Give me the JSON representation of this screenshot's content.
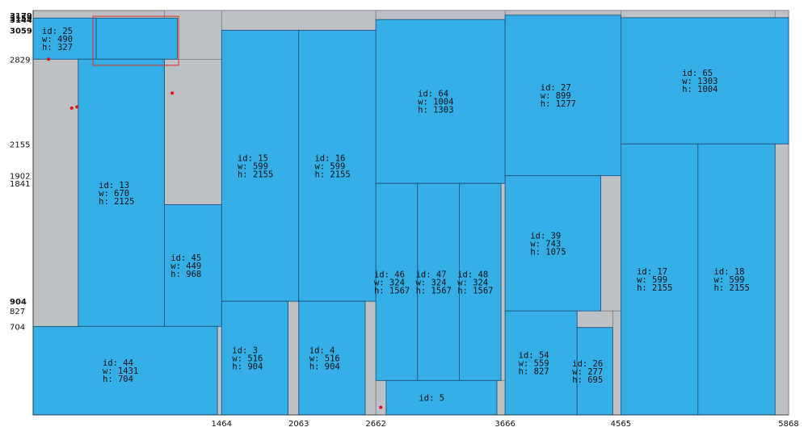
{
  "chart_data": {
    "type": "rectangle-packing",
    "sheet": {
      "width": 5868,
      "height": 3216
    },
    "colors": {
      "sheet": "#bdc0c4",
      "piece": "#33aee6",
      "piece_border": "#1f4f78",
      "highlight": "#e03030",
      "dot": "#e01010"
    },
    "pieces": [
      {
        "id": 25,
        "x": 0,
        "y": 2829,
        "w": 490,
        "h": 327,
        "label": "id: 25\nw: 490\nh: 327"
      },
      {
        "id": 25,
        "x": 490,
        "y": 2829,
        "w": 630,
        "h": 327,
        "label": ""
      },
      {
        "id": 13,
        "x": 350,
        "y": 704,
        "w": 670,
        "h": 2125,
        "label": "id: 13\nw: 670\nh: 2125"
      },
      {
        "id": 45,
        "x": 1020,
        "y": 704,
        "w": 449,
        "h": 968,
        "label": "id: 45\nw: 449\nh: 968"
      },
      {
        "id": 44,
        "x": 0,
        "y": 0,
        "w": 1431,
        "h": 704,
        "label": "id: 44\nw: 1431\nh: 704"
      },
      {
        "id": 15,
        "x": 1464,
        "y": 904,
        "w": 599,
        "h": 2155,
        "label": "id: 15\nw: 599\nh: 2155"
      },
      {
        "id": 3,
        "x": 1464,
        "y": 0,
        "w": 516,
        "h": 904,
        "label": "id: 3\nw: 516\nh: 904"
      },
      {
        "id": 16,
        "x": 2063,
        "y": 904,
        "w": 599,
        "h": 2155,
        "label": "id: 16\nw: 599\nh: 2155"
      },
      {
        "id": 4,
        "x": 2063,
        "y": 0,
        "w": 516,
        "h": 904,
        "label": "id: 4\nw: 516\nh: 904"
      },
      {
        "id": 64,
        "x": 2662,
        "y": 1841,
        "w": 1004,
        "h": 1303,
        "label": "id: 64\nw: 1004\nh: 1303"
      },
      {
        "id": 46,
        "x": 2662,
        "y": 274,
        "w": 324,
        "h": 1567,
        "label": "id: 46\nw: 324\nh: 1567"
      },
      {
        "id": 47,
        "x": 2986,
        "y": 274,
        "w": 324,
        "h": 1567,
        "label": "id: 47\nw: 324\nh: 1567"
      },
      {
        "id": 48,
        "x": 3310,
        "y": 274,
        "w": 324,
        "h": 1567,
        "label": "id: 48\nw: 324\nh: 1567"
      },
      {
        "id": 5,
        "x": 2742,
        "y": 0,
        "w": 860,
        "h": 274,
        "label": "id: 5"
      },
      {
        "id": 27,
        "x": 3666,
        "y": 1902,
        "w": 899,
        "h": 1277,
        "label": "id: 27\nw: 899\nh: 1277"
      },
      {
        "id": 39,
        "x": 3666,
        "y": 827,
        "w": 743,
        "h": 1075,
        "label": "id: 39\nw: 743\nh: 1075"
      },
      {
        "id": 54,
        "x": 3666,
        "y": 0,
        "w": 559,
        "h": 827,
        "label": "id: 54\nw: 559\nh: 827"
      },
      {
        "id": 26,
        "x": 4225,
        "y": 0,
        "w": 277,
        "h": 695,
        "label": "id: 26\nw: 277\nh: 695"
      },
      {
        "id": 65,
        "x": 4565,
        "y": 2155,
        "w": 1303,
        "h": 1004,
        "label": "id: 65\nw: 1303\nh: 1004"
      },
      {
        "id": 17,
        "x": 4565,
        "y": 0,
        "w": 599,
        "h": 2155,
        "label": "id: 17\nw: 599\nh: 2155"
      },
      {
        "id": 18,
        "x": 5164,
        "y": 0,
        "w": 599,
        "h": 2155,
        "label": "id: 18\nw: 599\nh: 2155"
      }
    ],
    "waste_areas": [
      {
        "x": 0,
        "y": 704,
        "w": 350,
        "h": 2125
      },
      {
        "x": 1020,
        "y": 1672,
        "w": 444,
        "h": 1157
      },
      {
        "x": 1020,
        "y": 2829,
        "w": 444,
        "h": 387
      },
      {
        "x": 1431,
        "y": 0,
        "w": 33,
        "h": 704
      },
      {
        "x": 1980,
        "y": 0,
        "w": 83,
        "h": 904
      },
      {
        "x": 2579,
        "y": 0,
        "w": 83,
        "h": 904
      },
      {
        "x": 1464,
        "y": 3059,
        "w": 1198,
        "h": 157
      },
      {
        "x": 2662,
        "y": 3144,
        "w": 1004,
        "h": 72
      },
      {
        "x": 3634,
        "y": 274,
        "w": 32,
        "h": 1567
      },
      {
        "x": 3602,
        "y": 0,
        "w": 64,
        "h": 274
      },
      {
        "x": 2662,
        "y": 0,
        "w": 80,
        "h": 274
      },
      {
        "x": 3666,
        "y": 3179,
        "w": 899,
        "h": 37
      },
      {
        "x": 4409,
        "y": 827,
        "w": 156,
        "h": 1075
      },
      {
        "x": 4225,
        "y": 695,
        "w": 277,
        "h": 132
      },
      {
        "x": 4502,
        "y": 0,
        "w": 63,
        "h": 827
      },
      {
        "x": 4565,
        "y": 3159,
        "w": 1303,
        "h": 57
      },
      {
        "x": 5763,
        "y": 0,
        "w": 105,
        "h": 2155
      },
      {
        "x": 5763,
        "y": 0,
        "w": 105,
        "h": 3216
      }
    ],
    "highlight_box": {
      "x": 465,
      "y": 2780,
      "w": 665,
      "h": 390
    },
    "points": [
      {
        "x": 120,
        "y": 2829
      },
      {
        "x": 300,
        "y": 2440
      },
      {
        "x": 340,
        "y": 2450
      },
      {
        "x": 1080,
        "y": 2560
      },
      {
        "x": 2700,
        "y": 60
      }
    ],
    "x_ticks": [
      "1464",
      "2063",
      "2662",
      "3666",
      "4565",
      "5868"
    ],
    "y_ticks": [
      "3179",
      "3159",
      "3144",
      "3059",
      "2829",
      "2155",
      "1902",
      "1841",
      "904",
      "827",
      "704"
    ]
  }
}
